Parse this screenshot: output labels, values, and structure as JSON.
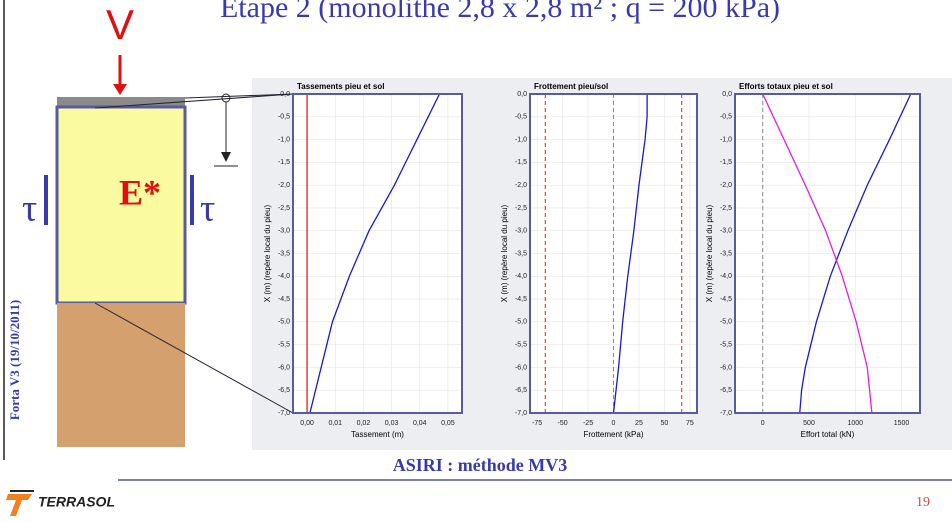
{
  "slide_title": "Etape 2 (monolithe 2,8 x 2,8 m² ; q = 200 kPa)",
  "diagram": {
    "load": "V",
    "shear_left": "τ",
    "modulus": "E*",
    "shear_right": "τ"
  },
  "side_note": "Forta V3 (19/10/2011)",
  "caption": "ASIRI : méthode MV3",
  "logo": "TERRASOL",
  "page_number": "19",
  "chart_data": [
    {
      "type": "line",
      "title": "Tassements pieu et sol",
      "x_label": "Tassement (m)",
      "y_label": "X (m) (repère local du pieu)",
      "xlim": [
        -0.005,
        0.055
      ],
      "ylim": [
        -7,
        0
      ],
      "grid": true,
      "xticks": [
        {
          "value": 0,
          "label": "0,00"
        },
        {
          "value": 0.01,
          "label": "0,01"
        },
        {
          "value": 0.02,
          "label": "0,02"
        },
        {
          "value": 0.03,
          "label": "0,03"
        },
        {
          "value": 0.04,
          "label": "0,04"
        },
        {
          "value": 0.05,
          "label": "0,05"
        }
      ],
      "yticks": [
        {
          "value": 0,
          "label": "0,0"
        },
        {
          "value": -0.5,
          "label": "-0,5"
        },
        {
          "value": -1,
          "label": "-1,0"
        },
        {
          "value": -1.5,
          "label": "-1,5"
        },
        {
          "value": -2,
          "label": "-2,0"
        },
        {
          "value": -2.5,
          "label": "-2,5"
        },
        {
          "value": -3,
          "label": "-3,0"
        },
        {
          "value": -3.5,
          "label": "-3,5"
        },
        {
          "value": -4,
          "label": "-4,0"
        },
        {
          "value": -4.5,
          "label": "-4,5"
        },
        {
          "value": -5,
          "label": "-5,0"
        },
        {
          "value": -5.5,
          "label": "-5,5"
        },
        {
          "value": -6,
          "label": "-6,0"
        },
        {
          "value": -6.5,
          "label": "-6,5"
        },
        {
          "value": -7,
          "label": "-7,0"
        }
      ],
      "reference_lines": [
        {
          "x": 0,
          "color": "#e02020",
          "dash": false
        }
      ],
      "series": [
        {
          "color": "#1a1acc",
          "x": [
            0.047,
            0.043,
            0.039,
            0.035,
            0.031,
            0.022,
            0.015,
            0.009,
            0.005,
            0.001
          ],
          "y": [
            0,
            -0.5,
            -1,
            -1.5,
            -2,
            -3,
            -4,
            -5,
            -6,
            -7
          ]
        }
      ]
    },
    {
      "type": "line",
      "title": "Frottement pieu/sol",
      "x_label": "Frottement (kPa)",
      "y_label": "X (m) (repère local du pieu)",
      "xlim": [
        -82,
        82
      ],
      "ylim": [
        -7,
        0
      ],
      "grid": true,
      "xticks": [
        -75,
        -50,
        -25,
        0,
        25,
        50,
        75
      ],
      "yticks": [
        {
          "value": 0,
          "label": "0,0"
        },
        {
          "value": -0.5,
          "label": "-0,5"
        },
        {
          "value": -1,
          "label": "-1,0"
        },
        {
          "value": -1.5,
          "label": "-1,5"
        },
        {
          "value": -2,
          "label": "-2,0"
        },
        {
          "value": -2.5,
          "label": "-2,5"
        },
        {
          "value": -3,
          "label": "-3,0"
        },
        {
          "value": -3.5,
          "label": "-3,5"
        },
        {
          "value": -4,
          "label": "-4,0"
        },
        {
          "value": -4.5,
          "label": "-4,5"
        },
        {
          "value": -5,
          "label": "-5,0"
        },
        {
          "value": -5.5,
          "label": "-5,5"
        },
        {
          "value": -6,
          "label": "-6,0"
        },
        {
          "value": -6.5,
          "label": "-6,5"
        },
        {
          "value": -7,
          "label": "-7,0"
        }
      ],
      "reference_lines": [
        {
          "x": 0,
          "color": "#888888",
          "dash": true
        },
        {
          "x": -67,
          "color": "#e02020",
          "dash": true
        },
        {
          "x": 67,
          "color": "#e02020",
          "dash": true
        }
      ],
      "series": [
        {
          "color": "#1a1acc",
          "x": [
            33,
            33,
            31,
            28,
            25,
            20,
            14,
            9,
            5,
            0
          ],
          "y": [
            0,
            -0.5,
            -1,
            -1.5,
            -2,
            -3,
            -4,
            -5,
            -6,
            -7
          ]
        }
      ]
    },
    {
      "type": "line",
      "title": "Efforts totaux pieu et sol",
      "x_label": "Effort total (kN)",
      "y_label": "X (m) (repère local du pieu)",
      "xlim": [
        -300,
        1700
      ],
      "ylim": [
        -7,
        0
      ],
      "grid": true,
      "xticks": [
        0,
        500,
        1000,
        1500
      ],
      "yticks": [
        {
          "value": 0,
          "label": "0,0"
        },
        {
          "value": -0.5,
          "label": "-0,5"
        },
        {
          "value": -1,
          "label": "-1,0"
        },
        {
          "value": -1.5,
          "label": "-1,5"
        },
        {
          "value": -2,
          "label": "-2,0"
        },
        {
          "value": -2.5,
          "label": "-2,5"
        },
        {
          "value": -3,
          "label": "-3,0"
        },
        {
          "value": -3.5,
          "label": "-3,5"
        },
        {
          "value": -4,
          "label": "-4,0"
        },
        {
          "value": -4.5,
          "label": "-4,5"
        },
        {
          "value": -5,
          "label": "-5,0"
        },
        {
          "value": -5.5,
          "label": "-5,5"
        },
        {
          "value": -6,
          "label": "-6,0"
        },
        {
          "value": -6.5,
          "label": "-6,5"
        },
        {
          "value": -7,
          "label": "-7,0"
        }
      ],
      "reference_lines": [
        {
          "x": 0,
          "color": "#888888",
          "dash": true
        }
      ],
      "series": [
        {
          "color": "#1a1acc",
          "x": [
            1600,
            1370,
            1130,
            920,
            730,
            580,
            460,
            420,
            400
          ],
          "y": [
            0,
            -1,
            -2,
            -3,
            -4,
            -5,
            -6,
            -6.5,
            -7
          ]
        },
        {
          "color": "#e020e0",
          "x": [
            0,
            230,
            460,
            680,
            860,
            1010,
            1130,
            1180
          ],
          "y": [
            0,
            -1,
            -2,
            -3,
            -4,
            -5,
            -6,
            -7
          ]
        }
      ]
    }
  ]
}
